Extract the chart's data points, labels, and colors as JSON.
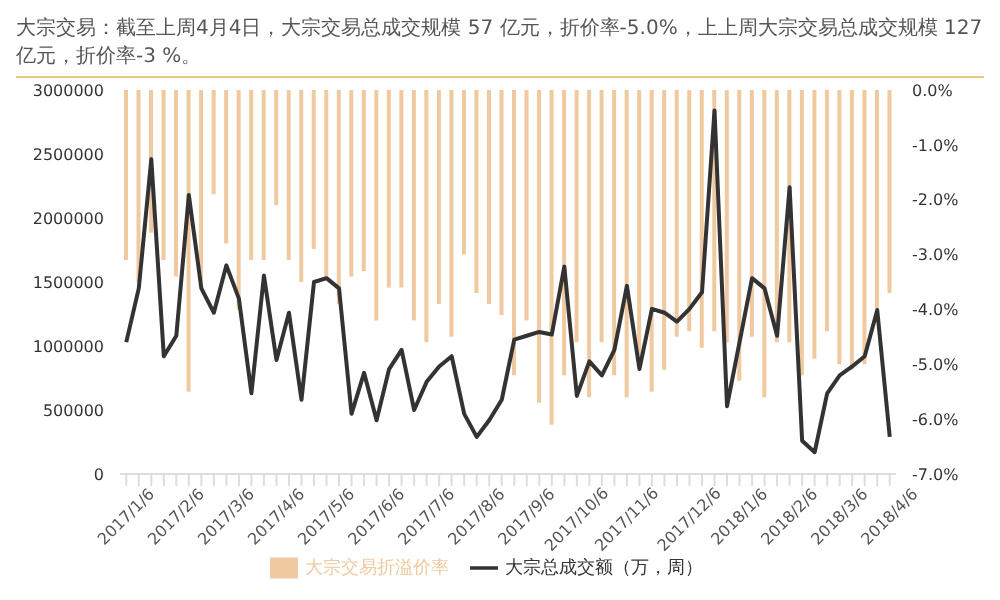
{
  "chart_data": {
    "type": "bar",
    "title": "大宗交易：截至上周4月4日，大宗交易总成交规模 57 亿元，折价率-5.0%，上上周大宗交易总成交规模 127 亿元，折价率-3 %。",
    "categories": [
      "2017/1/6",
      null,
      null,
      null,
      "2017/2/6",
      null,
      null,
      null,
      "2017/3/6",
      null,
      null,
      null,
      "2017/4/6",
      null,
      null,
      null,
      "2017/5/6",
      null,
      null,
      null,
      "2017/6/6",
      null,
      null,
      null,
      "2017/7/6",
      null,
      null,
      null,
      "2017/8/6",
      null,
      null,
      null,
      "2017/9/6",
      null,
      null,
      null,
      "2017/10/6",
      null,
      null,
      null,
      "2017/11/6",
      null,
      null,
      null,
      null,
      "2017/12/6",
      null,
      null,
      null,
      "2018/1/6",
      null,
      null,
      null,
      "2018/2/6",
      null,
      null,
      null,
      "2018/3/6",
      null,
      null,
      null,
      "2018/4/6"
    ],
    "series": [
      {
        "name": "大宗交易折溢价率",
        "axis": "y2",
        "color": "#f0c9a0",
        "values": [
          -3.1,
          -3.5,
          -2.6,
          -3.1,
          -3.4,
          -5.5,
          -3.5,
          -1.9,
          -2.8,
          -4.0,
          -3.1,
          -3.1,
          -2.1,
          -3.1,
          -3.5,
          -2.9,
          -3.4,
          -3.9,
          -3.4,
          -3.3,
          -4.2,
          -3.6,
          -3.6,
          -4.2,
          -4.6,
          -3.9,
          -4.5,
          -3.0,
          -3.7,
          -3.9,
          -4.1,
          -5.2,
          -4.2,
          -5.7,
          -6.1,
          -5.2,
          -4.6,
          -5.6,
          -4.6,
          -5.2,
          -5.6,
          -4.9,
          -5.5,
          -5.1,
          -4.5,
          -4.4,
          -4.7,
          -4.4,
          -4.6,
          -5.3,
          -4.5,
          -5.6,
          -4.6,
          -4.6,
          -5.2,
          -4.9,
          -4.4,
          -5.0,
          -5.1,
          -5.0,
          -4.1,
          -3.7
        ]
      },
      {
        "name": "大宗总成交额（万，周）",
        "type": "line",
        "color": "#333333",
        "values": [
          1030000,
          1450000,
          2460000,
          920000,
          1080000,
          2180000,
          1450000,
          1260000,
          1630000,
          1370000,
          630000,
          1550000,
          890000,
          1260000,
          580000,
          1500000,
          1530000,
          1450000,
          470000,
          790000,
          420000,
          820000,
          970000,
          500000,
          720000,
          840000,
          920000,
          470000,
          290000,
          420000,
          580000,
          1050000,
          1080000,
          1110000,
          1090000,
          1620000,
          610000,
          880000,
          770000,
          970000,
          1470000,
          820000,
          1290000,
          1260000,
          1190000,
          1290000,
          1420000,
          2840000,
          530000,
          1030000,
          1530000,
          1450000,
          1080000,
          2240000,
          260000,
          170000,
          630000,
          770000,
          840000,
          920000,
          1280000,
          290000
        ]
      }
    ],
    "ylim": [
      0,
      3000000
    ],
    "yticks": [
      0,
      500000,
      1000000,
      1500000,
      2000000,
      2500000,
      3000000
    ],
    "y2lim": [
      -7,
      0
    ],
    "y2ticks": [
      {
        "value": 0,
        "label": "0.0%"
      },
      {
        "value": -1,
        "label": "-1.0%"
      },
      {
        "value": -2,
        "label": "-2.0%"
      },
      {
        "value": -3,
        "label": "-3.0%"
      },
      {
        "value": -4,
        "label": "-4.0%"
      },
      {
        "value": -5,
        "label": "-5.0%"
      },
      {
        "value": -6,
        "label": "-6.0%"
      },
      {
        "value": -7,
        "label": "-7.0%"
      }
    ],
    "legend": "bottom",
    "marker": "none"
  }
}
